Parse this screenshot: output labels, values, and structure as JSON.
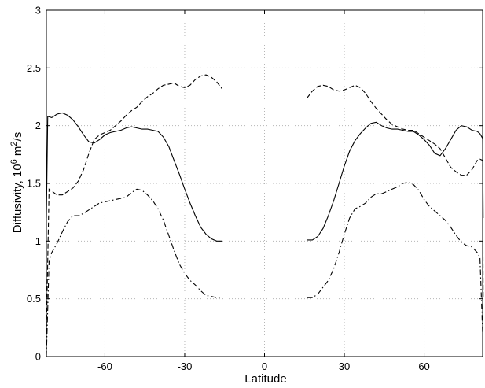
{
  "chart_data": {
    "type": "line",
    "xlabel": "Latitude",
    "ylabel": {
      "main": "Diffusivity, 10",
      "exp1": "6",
      "mid": " m",
      "exp2": "2",
      "tail": "/s"
    },
    "xlim": [
      -82,
      82
    ],
    "ylim": [
      0,
      3
    ],
    "xticks": [
      -60,
      -30,
      0,
      30,
      60
    ],
    "yticks": [
      0,
      0.5,
      1,
      1.5,
      2,
      2.5,
      3
    ],
    "grid": true,
    "series": [
      {
        "style": "solid",
        "segments": [
          [
            [
              -82,
              1.2
            ],
            [
              -81.5,
              2.08
            ],
            [
              -80,
              2.07
            ],
            [
              -78,
              2.1
            ],
            [
              -76,
              2.11
            ],
            [
              -74,
              2.09
            ],
            [
              -72,
              2.05
            ],
            [
              -70,
              1.99
            ],
            [
              -68,
              1.92
            ],
            [
              -66,
              1.86
            ],
            [
              -64,
              1.85
            ],
            [
              -62,
              1.88
            ],
            [
              -60,
              1.92
            ],
            [
              -58,
              1.94
            ],
            [
              -56,
              1.95
            ],
            [
              -54,
              1.96
            ],
            [
              -52,
              1.98
            ],
            [
              -50,
              1.99
            ],
            [
              -48,
              1.98
            ],
            [
              -46,
              1.97
            ],
            [
              -44,
              1.97
            ],
            [
              -42,
              1.96
            ],
            [
              -40,
              1.95
            ],
            [
              -38,
              1.9
            ],
            [
              -36,
              1.82
            ],
            [
              -34,
              1.7
            ],
            [
              -32,
              1.58
            ],
            [
              -30,
              1.45
            ],
            [
              -28,
              1.33
            ],
            [
              -26,
              1.22
            ],
            [
              -24,
              1.12
            ],
            [
              -22,
              1.06
            ],
            [
              -20,
              1.02
            ],
            [
              -18,
              1.0
            ],
            [
              -16,
              1.0
            ]
          ],
          [
            [
              16,
              1.01
            ],
            [
              18,
              1.01
            ],
            [
              20,
              1.04
            ],
            [
              22,
              1.11
            ],
            [
              24,
              1.22
            ],
            [
              26,
              1.35
            ],
            [
              28,
              1.5
            ],
            [
              30,
              1.65
            ],
            [
              32,
              1.78
            ],
            [
              34,
              1.87
            ],
            [
              36,
              1.93
            ],
            [
              38,
              1.98
            ],
            [
              40,
              2.02
            ],
            [
              42,
              2.03
            ],
            [
              44,
              2.0
            ],
            [
              46,
              1.98
            ],
            [
              48,
              1.97
            ],
            [
              50,
              1.97
            ],
            [
              52,
              1.96
            ],
            [
              54,
              1.95
            ],
            [
              56,
              1.95
            ],
            [
              58,
              1.92
            ],
            [
              60,
              1.88
            ],
            [
              62,
              1.83
            ],
            [
              64,
              1.76
            ],
            [
              66,
              1.74
            ],
            [
              68,
              1.8
            ],
            [
              70,
              1.88
            ],
            [
              72,
              1.96
            ],
            [
              74,
              2.0
            ],
            [
              76,
              1.99
            ],
            [
              78,
              1.96
            ],
            [
              80,
              1.95
            ],
            [
              81,
              1.93
            ],
            [
              82,
              1.89
            ],
            [
              82.2,
              1.2
            ]
          ]
        ]
      },
      {
        "style": "dashed",
        "segments": [
          [
            [
              -82,
              0.2
            ],
            [
              -81,
              1.45
            ],
            [
              -78,
              1.4
            ],
            [
              -76,
              1.4
            ],
            [
              -74,
              1.43
            ],
            [
              -72,
              1.46
            ],
            [
              -70,
              1.52
            ],
            [
              -68,
              1.62
            ],
            [
              -66,
              1.76
            ],
            [
              -64,
              1.88
            ],
            [
              -62,
              1.92
            ],
            [
              -60,
              1.94
            ],
            [
              -58,
              1.96
            ],
            [
              -56,
              2.0
            ],
            [
              -54,
              2.04
            ],
            [
              -52,
              2.09
            ],
            [
              -50,
              2.13
            ],
            [
              -48,
              2.16
            ],
            [
              -46,
              2.21
            ],
            [
              -44,
              2.25
            ],
            [
              -42,
              2.28
            ],
            [
              -40,
              2.32
            ],
            [
              -38,
              2.35
            ],
            [
              -36,
              2.36
            ],
            [
              -34,
              2.37
            ],
            [
              -32,
              2.34
            ],
            [
              -30,
              2.33
            ],
            [
              -28,
              2.35
            ],
            [
              -26,
              2.4
            ],
            [
              -24,
              2.43
            ],
            [
              -22,
              2.44
            ],
            [
              -20,
              2.42
            ],
            [
              -18,
              2.38
            ],
            [
              -16,
              2.32
            ]
          ],
          [
            [
              16,
              2.24
            ],
            [
              18,
              2.3
            ],
            [
              20,
              2.34
            ],
            [
              22,
              2.35
            ],
            [
              24,
              2.34
            ],
            [
              26,
              2.31
            ],
            [
              28,
              2.3
            ],
            [
              30,
              2.31
            ],
            [
              32,
              2.33
            ],
            [
              34,
              2.35
            ],
            [
              36,
              2.33
            ],
            [
              38,
              2.28
            ],
            [
              40,
              2.21
            ],
            [
              42,
              2.15
            ],
            [
              44,
              2.1
            ],
            [
              46,
              2.05
            ],
            [
              48,
              2.01
            ],
            [
              50,
              1.99
            ],
            [
              52,
              1.97
            ],
            [
              54,
              1.96
            ],
            [
              56,
              1.96
            ],
            [
              58,
              1.93
            ],
            [
              60,
              1.9
            ],
            [
              62,
              1.87
            ],
            [
              64,
              1.84
            ],
            [
              66,
              1.8
            ],
            [
              68,
              1.72
            ],
            [
              70,
              1.64
            ],
            [
              72,
              1.6
            ],
            [
              74,
              1.57
            ],
            [
              76,
              1.57
            ],
            [
              78,
              1.62
            ],
            [
              80,
              1.7
            ],
            [
              81,
              1.71
            ],
            [
              82,
              1.7
            ],
            [
              82.2,
              0.5
            ]
          ]
        ]
      },
      {
        "style": "dashdot",
        "segments": [
          [
            [
              -82,
              0.0
            ],
            [
              -81,
              0.82
            ],
            [
              -80,
              0.9
            ],
            [
              -78,
              0.98
            ],
            [
              -76,
              1.08
            ],
            [
              -74,
              1.17
            ],
            [
              -72,
              1.22
            ],
            [
              -70,
              1.22
            ],
            [
              -68,
              1.24
            ],
            [
              -66,
              1.27
            ],
            [
              -64,
              1.3
            ],
            [
              -62,
              1.33
            ],
            [
              -60,
              1.34
            ],
            [
              -58,
              1.35
            ],
            [
              -56,
              1.36
            ],
            [
              -54,
              1.37
            ],
            [
              -52,
              1.38
            ],
            [
              -50,
              1.42
            ],
            [
              -48,
              1.45
            ],
            [
              -46,
              1.44
            ],
            [
              -44,
              1.4
            ],
            [
              -42,
              1.35
            ],
            [
              -40,
              1.28
            ],
            [
              -38,
              1.18
            ],
            [
              -36,
              1.05
            ],
            [
              -34,
              0.92
            ],
            [
              -32,
              0.8
            ],
            [
              -30,
              0.72
            ],
            [
              -28,
              0.66
            ],
            [
              -26,
              0.62
            ],
            [
              -24,
              0.57
            ],
            [
              -22,
              0.53
            ],
            [
              -20,
              0.52
            ],
            [
              -18,
              0.51
            ],
            [
              -16,
              0.51
            ]
          ],
          [
            [
              16,
              0.51
            ],
            [
              18,
              0.51
            ],
            [
              20,
              0.54
            ],
            [
              22,
              0.6
            ],
            [
              24,
              0.66
            ],
            [
              26,
              0.76
            ],
            [
              28,
              0.9
            ],
            [
              30,
              1.06
            ],
            [
              32,
              1.2
            ],
            [
              34,
              1.28
            ],
            [
              36,
              1.3
            ],
            [
              38,
              1.33
            ],
            [
              40,
              1.38
            ],
            [
              42,
              1.41
            ],
            [
              44,
              1.41
            ],
            [
              46,
              1.43
            ],
            [
              48,
              1.45
            ],
            [
              50,
              1.47
            ],
            [
              52,
              1.5
            ],
            [
              54,
              1.51
            ],
            [
              56,
              1.49
            ],
            [
              58,
              1.44
            ],
            [
              60,
              1.36
            ],
            [
              62,
              1.3
            ],
            [
              64,
              1.26
            ],
            [
              66,
              1.22
            ],
            [
              68,
              1.18
            ],
            [
              70,
              1.12
            ],
            [
              72,
              1.05
            ],
            [
              74,
              0.99
            ],
            [
              76,
              0.96
            ],
            [
              78,
              0.95
            ],
            [
              80,
              0.9
            ],
            [
              81,
              0.86
            ],
            [
              82,
              0.2
            ]
          ]
        ]
      }
    ]
  }
}
